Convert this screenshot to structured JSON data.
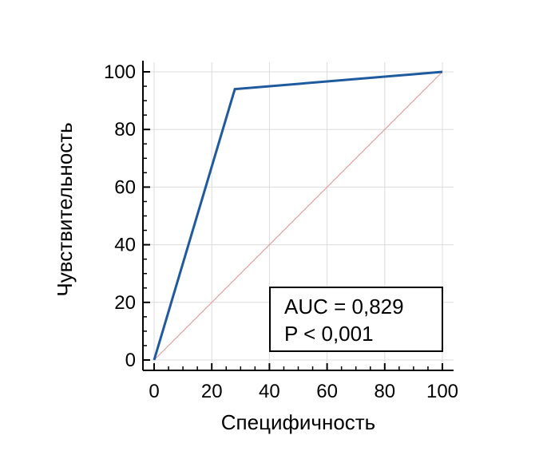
{
  "chart_data": {
    "type": "line",
    "title": "",
    "xlabel": "Специфичность",
    "ylabel": "Чувствительность",
    "xlim": [
      0,
      100
    ],
    "ylim": [
      0,
      100
    ],
    "xticks": [
      0,
      20,
      40,
      60,
      80,
      100
    ],
    "yticks": [
      0,
      20,
      40,
      60,
      80,
      100
    ],
    "grid": true,
    "series": [
      {
        "role": "roc-curve",
        "color": "#1f5a9e",
        "points": [
          [
            0,
            0
          ],
          [
            28,
            94
          ],
          [
            100,
            100
          ]
        ]
      },
      {
        "role": "reference-diagonal",
        "color": "#e8a0a0",
        "points": [
          [
            0,
            0
          ],
          [
            100,
            100
          ]
        ]
      }
    ],
    "annotation": {
      "lines": [
        "AUC = 0,829",
        "P < 0,001"
      ],
      "placement": "bottom-right"
    }
  }
}
